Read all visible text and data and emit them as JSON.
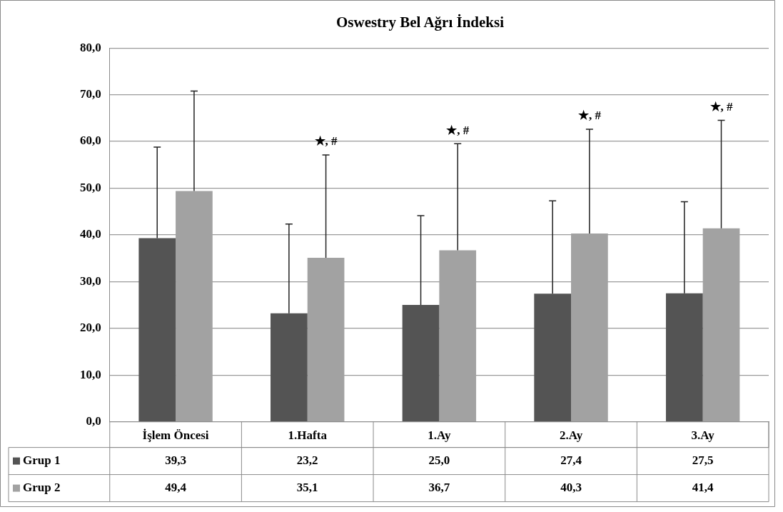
{
  "chart_data": {
    "type": "bar",
    "title": "Oswestry Bel Ağrı İndeksi",
    "categories": [
      "İşlem Öncesi",
      "1.Hafta",
      "1.Ay",
      "2.Ay",
      "3.Ay"
    ],
    "series": [
      {
        "name": "Grup 1",
        "color": "#545454",
        "values": [
          39.3,
          23.2,
          25.0,
          27.4,
          27.5
        ],
        "value_labels": [
          "39,3",
          "23,2",
          "25,0",
          "27,4",
          "27,5"
        ],
        "errors": [
          [
            39.3,
            58.8
          ],
          [
            23.2,
            42.3
          ],
          [
            25.0,
            44.1
          ],
          [
            27.4,
            47.3
          ],
          [
            27.5,
            47.1
          ]
        ]
      },
      {
        "name": "Grup 2",
        "color": "#a2a2a2",
        "values": [
          49.4,
          35.1,
          36.7,
          40.3,
          41.4
        ],
        "value_labels": [
          "49,4",
          "35,1",
          "36,7",
          "40,3",
          "41,4"
        ],
        "errors": [
          [
            49.4,
            70.8
          ],
          [
            35.1,
            57.1
          ],
          [
            36.7,
            59.5
          ],
          [
            40.3,
            62.6
          ],
          [
            41.4,
            64.5
          ]
        ]
      }
    ],
    "ylim": [
      0,
      80
    ],
    "yticks": [
      {
        "value": 0,
        "label": "0,0"
      },
      {
        "value": 10,
        "label": "10,0"
      },
      {
        "value": 20,
        "label": "20,0"
      },
      {
        "value": 30,
        "label": "30,0"
      },
      {
        "value": 40,
        "label": "40,0"
      },
      {
        "value": 50,
        "label": "50,0"
      },
      {
        "value": 60,
        "label": "60,0"
      },
      {
        "value": 70,
        "label": "70,0"
      },
      {
        "value": 80,
        "label": "80,0"
      }
    ],
    "grid": "y",
    "legend": "bottom",
    "annotations": [
      "★, #",
      "★, #",
      "★, #",
      "★, #"
    ]
  }
}
